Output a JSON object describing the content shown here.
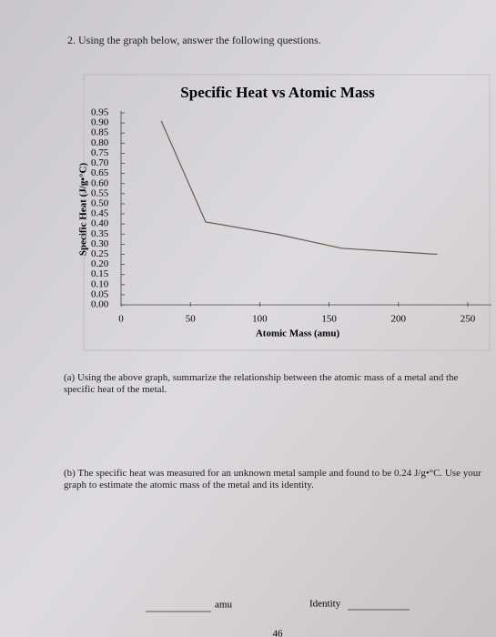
{
  "question": "2. Using the graph below, answer the following questions.",
  "chart_data": {
    "type": "line",
    "title": "Specific Heat vs Atomic Mass",
    "x_label": "Atomic Mass (amu)",
    "y_label": "Specific Heat (J/g•°C)",
    "x": [
      29,
      61,
      112,
      159,
      228
    ],
    "values": [
      0.91,
      0.41,
      0.35,
      0.28,
      0.25
    ],
    "color": "#6b5a4e",
    "xlim": [
      0,
      250
    ],
    "ylim": [
      0,
      0.95
    ],
    "xticks": [
      0,
      50,
      100,
      150,
      200,
      250
    ],
    "yticks": [
      {
        "value": 0,
        "label": "0.00"
      },
      0.05,
      {
        "value": 0.1,
        "label": "0.10"
      },
      0.15,
      {
        "value": 0.2,
        "label": "0.20"
      },
      0.25,
      {
        "value": 0.3,
        "label": "0.30"
      },
      0.35,
      {
        "value": 0.4,
        "label": "0.40"
      },
      0.45,
      {
        "value": 0.5,
        "label": "0.50"
      },
      0.55,
      {
        "value": 0.6,
        "label": "0.60"
      },
      0.65,
      {
        "value": 0.7,
        "label": "0.70"
      },
      0.75,
      {
        "value": 0.8,
        "label": "0.80"
      },
      0.85,
      {
        "value": 0.9,
        "label": "0.90"
      },
      0.95
    ]
  },
  "parts": [
    "(a) Using the above graph, summarize the relationship between the atomic mass of a metal and the specific heat of the metal.",
    "(b) The specific heat was measured for an unknown metal sample and found to be 0.24 J/g•°C. Use your graph to estimate the atomic mass of the metal and its identity."
  ],
  "answer_line": {
    "unit": "amu",
    "identity": "Identity"
  },
  "page_number": "46"
}
